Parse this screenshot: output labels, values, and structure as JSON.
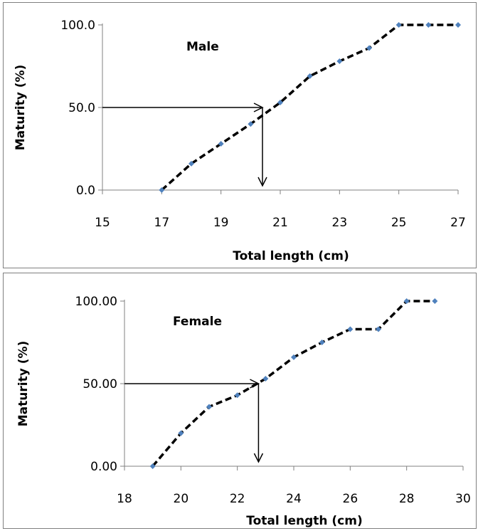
{
  "chart_data": [
    {
      "type": "line",
      "annotation": "Male",
      "xlabel": "Total length (cm)",
      "ylabel": "Maturity (%)",
      "xlim": [
        15,
        27
      ],
      "ylim": [
        0,
        100
      ],
      "x_ticks": [
        "15",
        "17",
        "19",
        "21",
        "23",
        "25",
        "27"
      ],
      "y_ticks": [
        "0.0",
        "50.0",
        "100.0"
      ],
      "grid": false,
      "series": [
        {
          "x": [
            17,
            18,
            19,
            20,
            21,
            22,
            23,
            24,
            25,
            26,
            27
          ],
          "y": [
            0,
            16,
            28,
            40,
            53,
            69,
            78,
            86,
            100,
            100,
            100
          ]
        }
      ],
      "l50": {
        "x": 20.4,
        "y": 50
      },
      "colors": {
        "line": "#000000",
        "marker": "#4f81bd"
      }
    },
    {
      "type": "line",
      "annotation": "Female",
      "xlabel": "Total length (cm)",
      "ylabel": "Maturity (%)",
      "xlim": [
        18,
        30
      ],
      "ylim": [
        0,
        100
      ],
      "x_ticks": [
        "18",
        "20",
        "22",
        "24",
        "26",
        "28",
        "30"
      ],
      "y_ticks": [
        "0.00",
        "50.00",
        "100.00"
      ],
      "grid": false,
      "series": [
        {
          "x": [
            19,
            20,
            21,
            22,
            23,
            24,
            25,
            26,
            27,
            28,
            29
          ],
          "y": [
            0,
            20,
            36,
            43,
            53,
            66,
            75,
            83,
            83,
            100,
            100
          ]
        }
      ],
      "l50": {
        "x": 22.75,
        "y": 50
      },
      "colors": {
        "line": "#000000",
        "marker": "#4f81bd"
      }
    }
  ]
}
